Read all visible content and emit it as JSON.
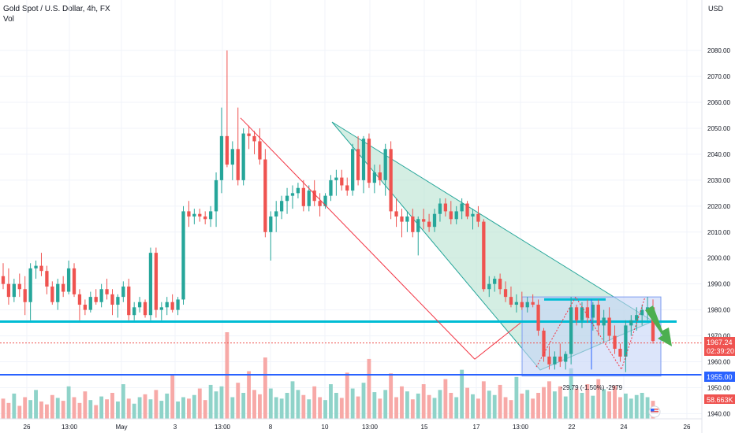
{
  "legend": {
    "title": "Gold Spot / U.S. Dollar, 4h, FX",
    "volume_label": "Vol"
  },
  "currency": "USD",
  "price_scale": {
    "ticks": [
      1940,
      1950,
      1960,
      1970,
      1980,
      1990,
      2000,
      2010,
      2020,
      2030,
      2040,
      2050,
      2060,
      2070,
      2080
    ],
    "tick_labels": [
      "1940.00",
      "1950.00",
      "1960.00",
      "1970.00",
      "1980.00",
      "1990.00",
      "2000.00",
      "2010.00",
      "2020.00",
      "2030.00",
      "2040.00",
      "2050.00",
      "2060.00",
      "2070.00",
      "2080.00"
    ]
  },
  "time_axis": {
    "labels": [
      "26",
      "13:00",
      "May",
      "3",
      "13:00",
      "8",
      "10",
      "13:00",
      "15",
      "17",
      "13:00",
      "22",
      "24",
      "26"
    ]
  },
  "badges": {
    "price": "1967.24",
    "countdown": "02:39:20",
    "support": "1955.00",
    "volume": "58.663K"
  },
  "measure_label": "-29.79 (-1.50%) -2979",
  "colors": {
    "up": "#26a69a",
    "down": "#ef5350",
    "up_volume": "#8fd3c9",
    "down_volume": "#f7a9a7",
    "resistance_line": "#00bcd4",
    "support_line": "#2962ff",
    "triangle_fill": "#b7e3d1",
    "rectangle_fill": "#c5d3f7",
    "arrow": "#4caf50",
    "trend_line": "#f23645"
  },
  "icons": [
    "flag-icon"
  ],
  "chart_data": {
    "type": "candlestick",
    "title": "Gold Spot / U.S. Dollar, 4h, FX",
    "ylim": [
      1938,
      2094
    ],
    "grid": true,
    "candles": [
      [
        1993,
        1998,
        1988,
        1990
      ],
      [
        1990,
        1996,
        1982,
        1985
      ],
      [
        1985,
        1992,
        1983,
        1990
      ],
      [
        1990,
        1994,
        1985,
        1988
      ],
      [
        1988,
        1993,
        1978,
        1983
      ],
      [
        1983,
        1998,
        1976,
        1996
      ],
      [
        1996,
        1999,
        1992,
        1997
      ],
      [
        1997,
        2002,
        1993,
        1995
      ],
      [
        1995,
        1997,
        1986,
        1989
      ],
      [
        1989,
        1991,
        1982,
        1983
      ],
      [
        1983,
        1992,
        1980,
        1990
      ],
      [
        1990,
        1993,
        1985,
        1987
      ],
      [
        1987,
        1999,
        1986,
        1996
      ],
      [
        1996,
        1998,
        1985,
        1986
      ],
      [
        1986,
        1988,
        1976,
        1982
      ],
      [
        1982,
        1984,
        1978,
        1980
      ],
      [
        1980,
        1987,
        1979,
        1985
      ],
      [
        1985,
        1988,
        1982,
        1983
      ],
      [
        1983,
        1990,
        1981,
        1988
      ],
      [
        1988,
        1992,
        1984,
        1986
      ],
      [
        1986,
        1988,
        1978,
        1982
      ],
      [
        1982,
        1986,
        1977,
        1985
      ],
      [
        1985,
        1991,
        1983,
        1989
      ],
      [
        1989,
        1992,
        1976,
        1978
      ],
      [
        1978,
        1983,
        1976,
        1981
      ],
      [
        1981,
        1985,
        1979,
        1983
      ],
      [
        1983,
        1984,
        1977,
        1978
      ],
      [
        1978,
        2004,
        1976,
        2002
      ],
      [
        2002,
        2004,
        1977,
        1980
      ],
      [
        1980,
        1983,
        1976,
        1981
      ],
      [
        1981,
        1985,
        1978,
        1983
      ],
      [
        1983,
        1986,
        1979,
        1980
      ],
      [
        1980,
        1985,
        1978,
        1984
      ],
      [
        1984,
        2020,
        1982,
        2018
      ],
      [
        2018,
        2022,
        2012,
        2016
      ],
      [
        2016,
        2019,
        2013,
        2017
      ],
      [
        2017,
        2019,
        2014,
        2016
      ],
      [
        2016,
        2018,
        2013,
        2015
      ],
      [
        2015,
        2020,
        2012,
        2018
      ],
      [
        2018,
        2033,
        2012,
        2030
      ],
      [
        2030,
        2058,
        2025,
        2047
      ],
      [
        2047,
        2080,
        2035,
        2036
      ],
      [
        2036,
        2045,
        2030,
        2042
      ],
      [
        2042,
        2058,
        2028,
        2030
      ],
      [
        2030,
        2050,
        2028,
        2048
      ],
      [
        2048,
        2051,
        2042,
        2047
      ],
      [
        2047,
        2049,
        2040,
        2045
      ],
      [
        2045,
        2050,
        2036,
        2038
      ],
      [
        2038,
        2042,
        2008,
        2010
      ],
      [
        2010,
        2018,
        1999,
        2016
      ],
      [
        2016,
        2022,
        2010,
        2018
      ],
      [
        2018,
        2024,
        2015,
        2022
      ],
      [
        2022,
        2027,
        2017,
        2024
      ],
      [
        2024,
        2028,
        2019,
        2025
      ],
      [
        2025,
        2029,
        2023,
        2027
      ],
      [
        2027,
        2030,
        2018,
        2020
      ],
      [
        2020,
        2028,
        2018,
        2026
      ],
      [
        2026,
        2030,
        2020,
        2022
      ],
      [
        2022,
        2025,
        2016,
        2020
      ],
      [
        2020,
        2025,
        2019,
        2024
      ],
      [
        2024,
        2032,
        2022,
        2030
      ],
      [
        2030,
        2034,
        2024,
        2031
      ],
      [
        2031,
        2034,
        2026,
        2028
      ],
      [
        2028,
        2031,
        2024,
        2026
      ],
      [
        2026,
        2044,
        2024,
        2042
      ],
      [
        2042,
        2047,
        2028,
        2030
      ],
      [
        2030,
        2047,
        2025,
        2046
      ],
      [
        2046,
        2048,
        2027,
        2029
      ],
      [
        2029,
        2036,
        2025,
        2033
      ],
      [
        2033,
        2036,
        2028,
        2030
      ],
      [
        2030,
        2044,
        2024,
        2042
      ],
      [
        2042,
        2045,
        2015,
        2018
      ],
      [
        2018,
        2023,
        2012,
        2016
      ],
      [
        2016,
        2019,
        2008,
        2014
      ],
      [
        2014,
        2018,
        2010,
        2016
      ],
      [
        2016,
        2019,
        2008,
        2010
      ],
      [
        2010,
        2016,
        2001,
        2015
      ],
      [
        2015,
        2019,
        2011,
        2014
      ],
      [
        2014,
        2017,
        2010,
        2012
      ],
      [
        2012,
        2019,
        2010,
        2017
      ],
      [
        2017,
        2023,
        2014,
        2021
      ],
      [
        2021,
        2023,
        2016,
        2018
      ],
      [
        2018,
        2022,
        2013,
        2015
      ],
      [
        2015,
        2020,
        2013,
        2018
      ],
      [
        2018,
        2023,
        2015,
        2021
      ],
      [
        2021,
        2022,
        2015,
        2016
      ],
      [
        2016,
        2019,
        2011,
        2017
      ],
      [
        2017,
        2020,
        2012,
        2014
      ],
      [
        2014,
        2015,
        1987,
        1988
      ],
      [
        1988,
        1993,
        1985,
        1990
      ],
      [
        1990,
        1993,
        1987,
        1992
      ],
      [
        1992,
        1994,
        1986,
        1988
      ],
      [
        1988,
        1991,
        1983,
        1985
      ],
      [
        1985,
        1989,
        1981,
        1982
      ],
      [
        1982,
        1986,
        1979,
        1983
      ],
      [
        1983,
        1987,
        1980,
        1981
      ],
      [
        1981,
        1985,
        1979,
        1983
      ],
      [
        1983,
        1986,
        1981,
        1982
      ],
      [
        1982,
        1984,
        1970,
        1972
      ],
      [
        1972,
        1973,
        1960,
        1962
      ],
      [
        1962,
        1966,
        1957,
        1959
      ],
      [
        1959,
        1964,
        1957,
        1962
      ],
      [
        1962,
        1967,
        1958,
        1960
      ],
      [
        1960,
        1964,
        1957,
        1963
      ],
      [
        1963,
        1985,
        1959,
        1981
      ],
      [
        1981,
        1982,
        1974,
        1976
      ],
      [
        1976,
        1983,
        1973,
        1981
      ],
      [
        1981,
        1984,
        1975,
        1977
      ],
      [
        1977,
        1983,
        1972,
        1982
      ],
      [
        1982,
        1984,
        1970,
        1974
      ],
      [
        1974,
        1980,
        1968,
        1977
      ],
      [
        1977,
        1981,
        1968,
        1970
      ],
      [
        1970,
        1974,
        1963,
        1965
      ],
      [
        1965,
        1967,
        1960,
        1962
      ],
      [
        1962,
        1976,
        1956,
        1974
      ],
      [
        1974,
        1978,
        1970,
        1976
      ],
      [
        1976,
        1981,
        1972,
        1978
      ],
      [
        1978,
        1982,
        1974,
        1980
      ],
      [
        1980,
        1985,
        1976,
        1981
      ],
      [
        1981,
        1984,
        1967,
        1968
      ]
    ],
    "volume": [
      28,
      22,
      35,
      18,
      30,
      26,
      40,
      24,
      20,
      33,
      29,
      25,
      45,
      30,
      22,
      38,
      26,
      19,
      31,
      27,
      36,
      24,
      48,
      28,
      21,
      30,
      34,
      27,
      40,
      25,
      35,
      60,
      24,
      30,
      28,
      33,
      42,
      26,
      47,
      38,
      45,
      120,
      30,
      50,
      36,
      66,
      40,
      34,
      85,
      42,
      30,
      28,
      36,
      52,
      40,
      33,
      27,
      45,
      30,
      26,
      48,
      36,
      29,
      64,
      42,
      31,
      50,
      83,
      37,
      28,
      40,
      63,
      30,
      45,
      38,
      27,
      35,
      48,
      33,
      29,
      40,
      55,
      36,
      30,
      68,
      43,
      34,
      28,
      52,
      39,
      33,
      47,
      30,
      26,
      58,
      35,
      40,
      28,
      36,
      44,
      52,
      38,
      45,
      31,
      70,
      42,
      36,
      48,
      32,
      55,
      41,
      38,
      46,
      30,
      35,
      28,
      33,
      36,
      30,
      25
    ]
  }
}
